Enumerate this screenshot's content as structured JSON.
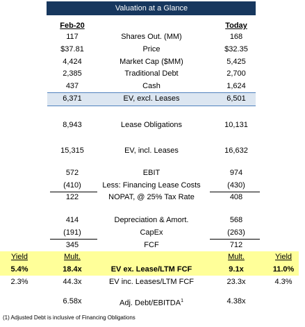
{
  "header": {
    "title": "Valuation at a Glance"
  },
  "columns": {
    "left": "Feb-20",
    "right": "Today"
  },
  "table": {
    "rows": [
      [
        "117",
        "Shares Out. (MM)",
        "168"
      ],
      [
        "$37.81",
        "Price",
        "$32.35"
      ],
      [
        "4,424",
        "Market Cap ($MM)",
        "5,425"
      ],
      [
        "2,385",
        "Traditional Debt",
        "2,700"
      ],
      [
        "437",
        "Cash",
        "1,624"
      ],
      [
        "6,371",
        "EV, excl. Leases",
        "6,501"
      ],
      [
        "8,943",
        "Lease Obligations",
        "10,131"
      ],
      [
        "15,315",
        "EV, incl. Leases",
        "16,632"
      ],
      [
        "572",
        "EBIT",
        "974"
      ],
      [
        "(410)",
        "Less: Financing Lease Costs",
        "(430)"
      ],
      [
        "122",
        "NOPAT, @ 25% Tax Rate",
        "408"
      ],
      [
        "414",
        "Depreciation & Amort.",
        "568"
      ],
      [
        "(191)",
        "CapEx",
        "(263)"
      ],
      [
        "345",
        "FCF",
        "712"
      ]
    ]
  },
  "multiples": {
    "header": [
      "Yield",
      "Mult.",
      "Mult.",
      "Yield"
    ],
    "rows": [
      [
        "5.4%",
        "18.4x",
        "EV ex. Lease/LTM FCF",
        "9.1x",
        "11.0%"
      ],
      [
        "2.3%",
        "44.3x",
        "EV inc. Leases/LTM FCF",
        "23.3x",
        "4.3%"
      ]
    ]
  },
  "leverage": {
    "left": "6.58x",
    "label": "Adj. Debt/EBITDA",
    "marker": "1",
    "right": "4.38x"
  },
  "footnote": "(1) Adjusted Debt is inclusive of Financing Obligations"
}
